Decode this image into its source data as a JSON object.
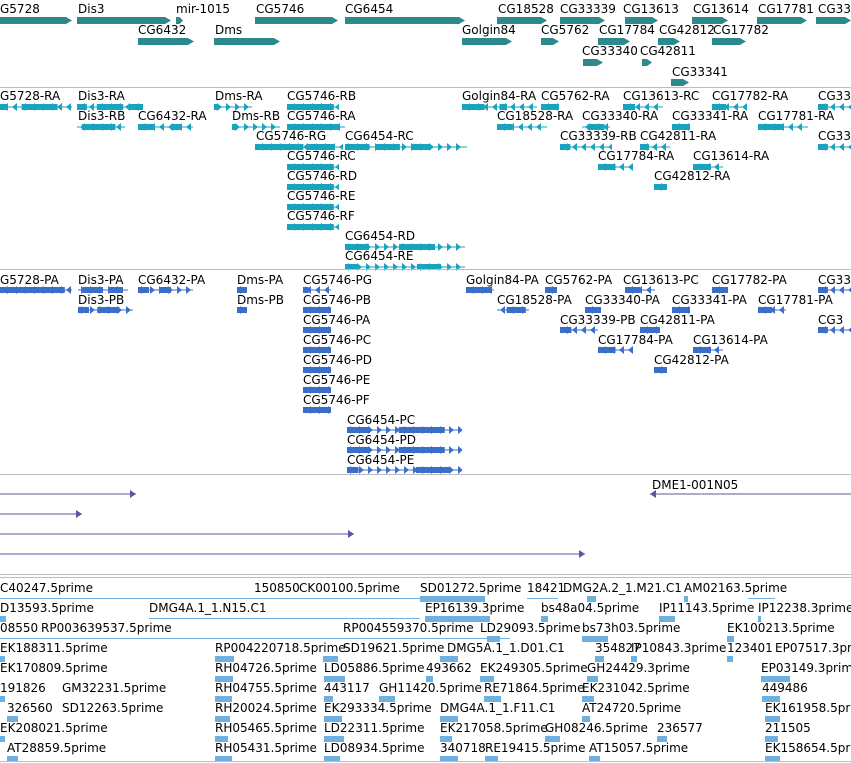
{
  "colors": {
    "gene": "#2e8a8a",
    "transcript": "#1aa3bf",
    "protein": "#3b6ec9",
    "clone": "#6a4fa0",
    "est": "#6fb0e0",
    "divider": "#bdbdbd"
  },
  "tracks": {
    "gene": {
      "color": "#2e8a8a",
      "items": [
        {
          "label": "G5728",
          "dir": "right"
        },
        {
          "label": "Dis3",
          "dir": "right"
        },
        {
          "label": "mir-1015",
          "dir": "right"
        },
        {
          "label": "CG5746",
          "dir": "right"
        },
        {
          "label": "CG6454",
          "dir": "right"
        },
        {
          "label": "CG18528",
          "dir": "right"
        },
        {
          "label": "CG33339",
          "dir": "right"
        },
        {
          "label": "CG13613",
          "dir": "right"
        },
        {
          "label": "CG13614",
          "dir": "right"
        },
        {
          "label": "CG17781",
          "dir": "right"
        },
        {
          "label": "CG333",
          "dir": "right"
        },
        {
          "label": "CG6432",
          "dir": "right"
        },
        {
          "label": "Dms",
          "dir": "right"
        },
        {
          "label": "Golgin84",
          "dir": "right"
        },
        {
          "label": "CG5762",
          "dir": "right"
        },
        {
          "label": "CG17784",
          "dir": "right"
        },
        {
          "label": "CG42812",
          "dir": "right"
        },
        {
          "label": "CG17782",
          "dir": "right"
        },
        {
          "label": "CG33340",
          "dir": "right"
        },
        {
          "label": "CG42811",
          "dir": "right"
        },
        {
          "label": "CG33341",
          "dir": "right"
        }
      ]
    },
    "transcript": {
      "color": "#1aa3bf",
      "items": [
        {
          "label": "G5728-RA",
          "dir": "left"
        },
        {
          "label": "Dis3-RA",
          "dir": "left"
        },
        {
          "label": "Dms-RA",
          "dir": "right"
        },
        {
          "label": "CG5746-RB",
          "dir": "left"
        },
        {
          "label": "Golgin84-RA",
          "dir": "left"
        },
        {
          "label": "CG5762-RA",
          "dir": "left"
        },
        {
          "label": "CG13613-RC",
          "dir": "left"
        },
        {
          "label": "CG17782-RA",
          "dir": "left"
        },
        {
          "label": "CG33",
          "dir": "left"
        },
        {
          "label": "Dis3-RB",
          "dir": "left"
        },
        {
          "label": "CG6432-RA",
          "dir": "left"
        },
        {
          "label": "Dms-RB",
          "dir": "right"
        },
        {
          "label": "CG5746-RA",
          "dir": "left"
        },
        {
          "label": "CG18528-RA",
          "dir": "left"
        },
        {
          "label": "CG33340-RA",
          "dir": "left"
        },
        {
          "label": "CG33341-RA",
          "dir": "left"
        },
        {
          "label": "CG17781-RA",
          "dir": "left"
        },
        {
          "label": "CG5746-RG",
          "dir": "left"
        },
        {
          "label": "CG6454-RC",
          "dir": "right"
        },
        {
          "label": "CG33339-RB",
          "dir": "left"
        },
        {
          "label": "CG42811-RA",
          "dir": "left"
        },
        {
          "label": "CG33",
          "dir": "left"
        },
        {
          "label": "CG5746-RC",
          "dir": "left"
        },
        {
          "label": "CG17784-RA",
          "dir": "left"
        },
        {
          "label": "CG13614-RA",
          "dir": "left"
        },
        {
          "label": "CG5746-RD",
          "dir": "left"
        },
        {
          "label": "CG42812-RA",
          "dir": "left"
        },
        {
          "label": "CG5746-RE",
          "dir": "left"
        },
        {
          "label": "CG5746-RF",
          "dir": "left"
        },
        {
          "label": "CG6454-RD",
          "dir": "right"
        },
        {
          "label": "CG6454-RE",
          "dir": "right"
        }
      ]
    },
    "protein": {
      "color": "#3b6ec9",
      "items": [
        {
          "label": "G5728-PA",
          "dir": "left"
        },
        {
          "label": "Dis3-PA",
          "dir": "right"
        },
        {
          "label": "CG6432-PA",
          "dir": "right"
        },
        {
          "label": "Dms-PA",
          "dir": "right"
        },
        {
          "label": "CG5746-PG",
          "dir": "left"
        },
        {
          "label": "Golgin84-PA",
          "dir": "left"
        },
        {
          "label": "CG5762-PA",
          "dir": "left"
        },
        {
          "label": "CG13613-PC",
          "dir": "left"
        },
        {
          "label": "CG17782-PA",
          "dir": "left"
        },
        {
          "label": "CG33",
          "dir": "left"
        },
        {
          "label": "Dis3-PB",
          "dir": "right"
        },
        {
          "label": "Dms-PB",
          "dir": "right"
        },
        {
          "label": "CG5746-PB",
          "dir": "left"
        },
        {
          "label": "CG18528-PA",
          "dir": "left"
        },
        {
          "label": "CG33340-PA",
          "dir": "left"
        },
        {
          "label": "CG33341-PA",
          "dir": "left"
        },
        {
          "label": "CG17781-PA",
          "dir": "left"
        },
        {
          "label": "CG5746-PA",
          "dir": "left"
        },
        {
          "label": "CG33339-PB",
          "dir": "left"
        },
        {
          "label": "CG42811-PA",
          "dir": "left"
        },
        {
          "label": "CG3",
          "dir": "left"
        },
        {
          "label": "CG5746-PC",
          "dir": "left"
        },
        {
          "label": "CG17784-PA",
          "dir": "left"
        },
        {
          "label": "CG13614-PA",
          "dir": "left"
        },
        {
          "label": "CG5746-PD",
          "dir": "left"
        },
        {
          "label": "CG42812-PA",
          "dir": "left"
        },
        {
          "label": "CG5746-PE",
          "dir": "left"
        },
        {
          "label": "CG5746-PF",
          "dir": "left"
        },
        {
          "label": "CG6454-PC",
          "dir": "right"
        },
        {
          "label": "CG6454-PD",
          "dir": "right"
        },
        {
          "label": "CG6454-PE",
          "dir": "right"
        }
      ]
    },
    "clone": {
      "color": "#6a4fa0",
      "items": [
        {
          "label": "DME1-001N05",
          "dir": "left"
        }
      ]
    },
    "est": {
      "color": "#6fb0e0",
      "items": [
        "C40247.5prime",
        "150850",
        "CK00100.5prime",
        "SD01272.5prime",
        "18421",
        "DMG2A.2_1.M21.C1",
        "AM02163.5prime",
        "D13593.5prime",
        "DMG4A.1_1.N15.C1",
        "EP16139.3prime",
        "bs48a04.5prime",
        "IP11143.5prime",
        "IP12238.3prime",
        "08550",
        "RP003639537.5prime",
        "RP004559370.5prime",
        "LD29093.5prime",
        "bs73h03.5prime",
        "EK100213.5prime",
        "EK188311.5prime",
        "RP004220718.5prime",
        "SD19621.5prime",
        "DMG5A.1_1.D01.C1",
        "354827",
        "IP10843.3prime",
        "123401",
        "EP07517.3prime",
        "EK170809.5prime",
        "RH04726.5prime",
        "LD05886.5prime",
        "493662",
        "EK249305.5prime",
        "GH24429.3prime",
        "EP03149.3prime",
        "191826",
        "GM32231.5prime",
        "RH04755.5prime",
        "443117",
        "GH11420.5prime",
        "RE71864.5prime",
        "EK231042.5prime",
        "449486",
        "326560",
        "SD12263.5prime",
        "RH20024.5prime",
        "EK293334.5prime",
        "DMG4A.1_1.F11.C1",
        "AT24720.5prime",
        "EK161958.5prime",
        "EK208021.5prime",
        "RH05465.5prime",
        "LD22311.5prime",
        "EK217058.5prime",
        "GH08246.5prime",
        "236577",
        "211505",
        "AT28859.5prime",
        "RH05431.5prime",
        "LD08934.5prime",
        "340718",
        "RE19415.5prime",
        "AT15057.5prime",
        "EK158654.5prime"
      ]
    }
  }
}
